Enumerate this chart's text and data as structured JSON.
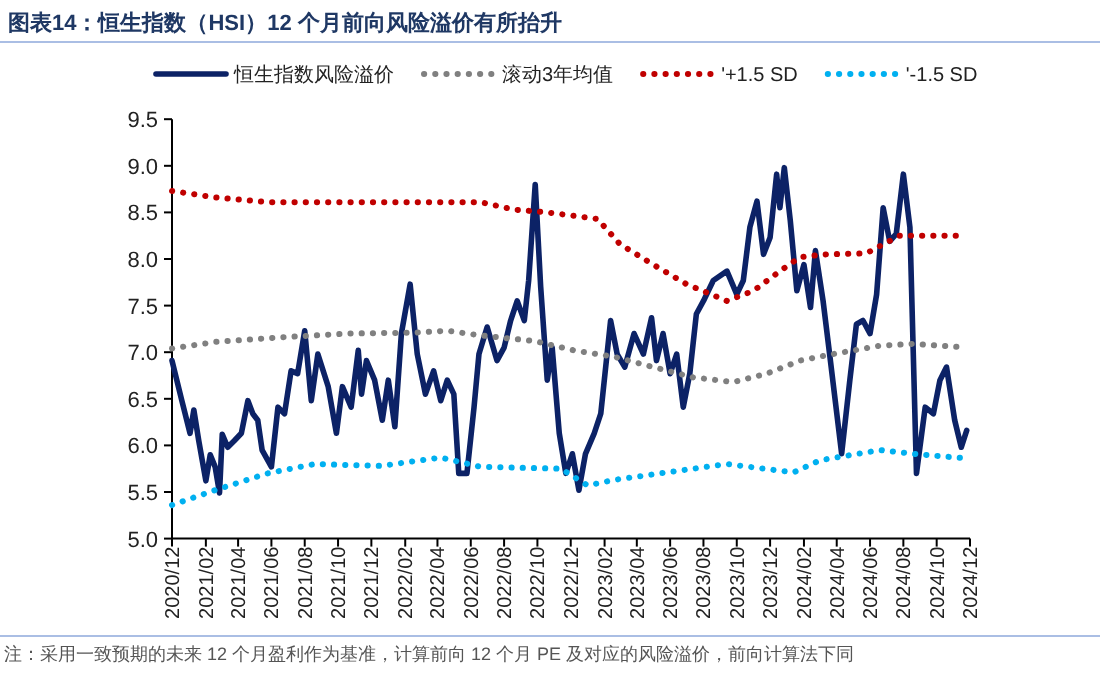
{
  "chart_data": {
    "type": "line",
    "title": "图表14：恒生指数（HSI）12 个月前向风险溢价有所抬升",
    "annotations": [
      "注：采用一致预期的未来 12 个月盈利作为基准，计算前向 12 个月 PE 及对应的风险溢价，前向计算法下同"
    ],
    "legend": "top",
    "grid": false,
    "xlim": [
      "2020-12-01",
      "2024-12-01"
    ],
    "xticks": [
      {
        "value": "2020-12-01",
        "label": "2020/12"
      },
      {
        "value": "2021-02-01",
        "label": "2021/02"
      },
      {
        "value": "2021-04-01",
        "label": "2021/04"
      },
      {
        "value": "2021-06-01",
        "label": "2021/06"
      },
      {
        "value": "2021-08-01",
        "label": "2021/08"
      },
      {
        "value": "2021-10-01",
        "label": "2021/10"
      },
      {
        "value": "2021-12-01",
        "label": "2021/12"
      },
      {
        "value": "2022-02-01",
        "label": "2022/02"
      },
      {
        "value": "2022-04-01",
        "label": "2022/04"
      },
      {
        "value": "2022-06-01",
        "label": "2022/06"
      },
      {
        "value": "2022-08-01",
        "label": "2022/08"
      },
      {
        "value": "2022-10-01",
        "label": "2022/10"
      },
      {
        "value": "2022-12-01",
        "label": "2022/12"
      },
      {
        "value": "2023-02-01",
        "label": "2023/02"
      },
      {
        "value": "2023-04-01",
        "label": "2023/04"
      },
      {
        "value": "2023-06-01",
        "label": "2023/06"
      },
      {
        "value": "2023-08-01",
        "label": "2023/08"
      },
      {
        "value": "2023-10-01",
        "label": "2023/10"
      },
      {
        "value": "2023-12-01",
        "label": "2023/12"
      },
      {
        "value": "2024-02-01",
        "label": "2024/02"
      },
      {
        "value": "2024-04-01",
        "label": "2024/04"
      },
      {
        "value": "2024-06-01",
        "label": "2024/06"
      },
      {
        "value": "2024-08-01",
        "label": "2024/08"
      },
      {
        "value": "2024-10-01",
        "label": "2024/10"
      },
      {
        "value": "2024-12-01",
        "label": "2024/12"
      }
    ],
    "ylim": [
      5,
      9.5
    ],
    "yticks": [
      {
        "value": 5,
        "label": "5.0"
      },
      {
        "value": 5.5,
        "label": "5.5"
      },
      {
        "value": 6,
        "label": "6.0"
      },
      {
        "value": 6.5,
        "label": "6.5"
      },
      {
        "value": 7,
        "label": "7.0"
      },
      {
        "value": 7.5,
        "label": "7.5"
      },
      {
        "value": 8,
        "label": "8.0"
      },
      {
        "value": 8.5,
        "label": "8.5"
      },
      {
        "value": 9,
        "label": "9.0"
      },
      {
        "value": 9.5,
        "label": "9.5"
      }
    ],
    "series": [
      {
        "name": "恒生指数风险溢价",
        "color": "#0c2266",
        "line_style": "solid",
        "x": [
          "2020-12-01",
          "2020-12-19",
          "2021-01-03",
          "2021-01-10",
          "2021-01-19",
          "2021-02-01",
          "2021-02-09",
          "2021-02-18",
          "2021-02-26",
          "2021-03-03",
          "2021-03-13",
          "2021-03-25",
          "2021-04-07",
          "2021-04-19",
          "2021-04-28",
          "2021-05-07",
          "2021-05-15",
          "2021-06-01",
          "2021-06-13",
          "2021-06-25",
          "2021-07-07",
          "2021-07-19",
          "2021-08-01",
          "2021-08-13",
          "2021-08-25",
          "2021-09-13",
          "2021-09-28",
          "2021-10-09",
          "2021-10-25",
          "2021-11-07",
          "2021-11-13",
          "2021-11-22",
          "2021-12-07",
          "2021-12-21",
          "2022-01-01",
          "2022-01-13",
          "2022-01-25",
          "2022-02-10",
          "2022-02-23",
          "2022-03-10",
          "2022-03-25",
          "2022-04-07",
          "2022-04-19",
          "2022-05-01",
          "2022-05-10",
          "2022-05-25",
          "2022-06-07",
          "2022-06-16",
          "2022-07-01",
          "2022-07-19",
          "2022-08-01",
          "2022-08-13",
          "2022-08-25",
          "2022-09-07",
          "2022-09-15",
          "2022-09-27",
          "2022-10-07",
          "2022-10-19",
          "2022-10-28",
          "2022-11-10",
          "2022-11-22",
          "2022-12-04",
          "2022-12-16",
          "2022-12-28",
          "2023-01-13",
          "2023-01-25",
          "2023-02-12",
          "2023-02-24",
          "2023-03-10",
          "2023-03-27",
          "2023-04-13",
          "2023-04-28",
          "2023-05-07",
          "2023-05-19",
          "2023-06-01",
          "2023-06-13",
          "2023-06-25",
          "2023-07-07",
          "2023-07-19",
          "2023-08-01",
          "2023-08-19",
          "2023-09-13",
          "2023-10-01",
          "2023-10-13",
          "2023-10-25",
          "2023-11-07",
          "2023-11-19",
          "2023-12-01",
          "2023-12-13",
          "2023-12-19",
          "2023-12-27",
          "2024-01-07",
          "2024-01-19",
          "2024-02-01",
          "2024-02-13",
          "2024-02-22",
          "2024-03-07",
          "2024-03-19",
          "2024-04-10",
          "2024-04-25",
          "2024-05-07",
          "2024-05-19",
          "2024-06-01",
          "2024-06-13",
          "2024-06-25",
          "2024-07-07",
          "2024-07-19",
          "2024-08-01",
          "2024-08-13",
          "2024-08-25",
          "2024-09-10",
          "2024-09-25",
          "2024-10-07",
          "2024-10-19",
          "2024-11-03",
          "2024-11-15",
          "2024-11-25"
        ],
        "values": [
          6.91,
          6.48,
          6.13,
          6.38,
          6.05,
          5.62,
          5.9,
          5.77,
          5.49,
          6.12,
          5.98,
          6.05,
          6.13,
          6.48,
          6.34,
          6.27,
          5.95,
          5.77,
          6.41,
          6.34,
          6.8,
          6.77,
          7.23,
          6.48,
          6.98,
          6.63,
          6.13,
          6.63,
          6.41,
          7.02,
          6.55,
          6.91,
          6.7,
          6.27,
          6.7,
          6.2,
          7.2,
          7.73,
          6.98,
          6.55,
          6.8,
          6.48,
          6.7,
          6.55,
          5.7,
          5.7,
          6.41,
          6.98,
          7.27,
          6.91,
          7.05,
          7.34,
          7.55,
          7.34,
          7.77,
          8.8,
          7.7,
          6.7,
          7.05,
          6.13,
          5.7,
          5.91,
          5.52,
          5.91,
          6.13,
          6.34,
          7.34,
          6.98,
          6.84,
          7.2,
          6.98,
          7.37,
          6.91,
          7.2,
          6.77,
          6.98,
          6.41,
          6.77,
          7.41,
          7.55,
          7.77,
          7.87,
          7.62,
          7.77,
          8.34,
          8.62,
          8.05,
          8.23,
          8.91,
          8.55,
          8.98,
          8.41,
          7.66,
          7.94,
          7.48,
          8.09,
          7.55,
          6.98,
          5.91,
          6.7,
          7.3,
          7.34,
          7.2,
          7.62,
          8.55,
          8.19,
          8.27,
          8.91,
          8.34,
          5.7,
          6.41,
          6.34,
          6.7,
          6.84,
          6.27,
          5.98,
          6.16
        ]
      },
      {
        "name": "滚动3年均值",
        "color": "#808080",
        "line_style": "dotted",
        "x": [
          "2020-12-01",
          "2021-02-18",
          "2021-06-19",
          "2021-10-19",
          "2022-02-19",
          "2022-04-19",
          "2022-06-19",
          "2022-09-25",
          "2022-12-07",
          "2023-02-19",
          "2023-05-01",
          "2023-07-13",
          "2023-09-25",
          "2023-11-25",
          "2024-01-25",
          "2024-03-25",
          "2024-06-19",
          "2024-08-19",
          "2024-11-25"
        ],
        "values": [
          7.04,
          7.11,
          7.16,
          7.2,
          7.21,
          7.23,
          7.18,
          7.12,
          7.02,
          6.95,
          6.84,
          6.73,
          6.68,
          6.77,
          6.91,
          6.98,
          7.07,
          7.09,
          7.05
        ]
      },
      {
        "name": "'+1.5 SD",
        "color": "#c00000",
        "line_style": "dotted",
        "x": [
          "2020-12-01",
          "2021-02-18",
          "2021-05-25",
          "2021-10-19",
          "2022-06-19",
          "2022-08-19",
          "2022-10-19",
          "2023-01-19",
          "2023-03-01",
          "2023-05-01",
          "2023-07-01",
          "2023-09-13",
          "2023-11-01",
          "2023-12-19",
          "2024-01-25",
          "2024-03-13",
          "2024-05-25",
          "2024-07-25",
          "2024-11-25"
        ],
        "values": [
          8.73,
          8.66,
          8.61,
          8.61,
          8.61,
          8.53,
          8.5,
          8.43,
          8.16,
          7.94,
          7.73,
          7.55,
          7.66,
          7.87,
          8.02,
          8.05,
          8.06,
          8.25,
          8.25
        ]
      },
      {
        "name": "'-1.5 SD",
        "color": "#00b0f0",
        "line_style": "dotted",
        "x": [
          "2020-12-01",
          "2021-02-18",
          "2021-05-25",
          "2021-08-19",
          "2021-12-19",
          "2022-04-07",
          "2022-06-19",
          "2022-11-13",
          "2023-01-01",
          "2023-02-19",
          "2023-06-19",
          "2023-09-13",
          "2024-01-13",
          "2024-03-01",
          "2024-06-19",
          "2024-08-19",
          "2024-11-25"
        ],
        "values": [
          5.36,
          5.52,
          5.7,
          5.8,
          5.78,
          5.87,
          5.77,
          5.75,
          5.57,
          5.63,
          5.73,
          5.8,
          5.71,
          5.84,
          5.95,
          5.91,
          5.86
        ]
      }
    ]
  }
}
